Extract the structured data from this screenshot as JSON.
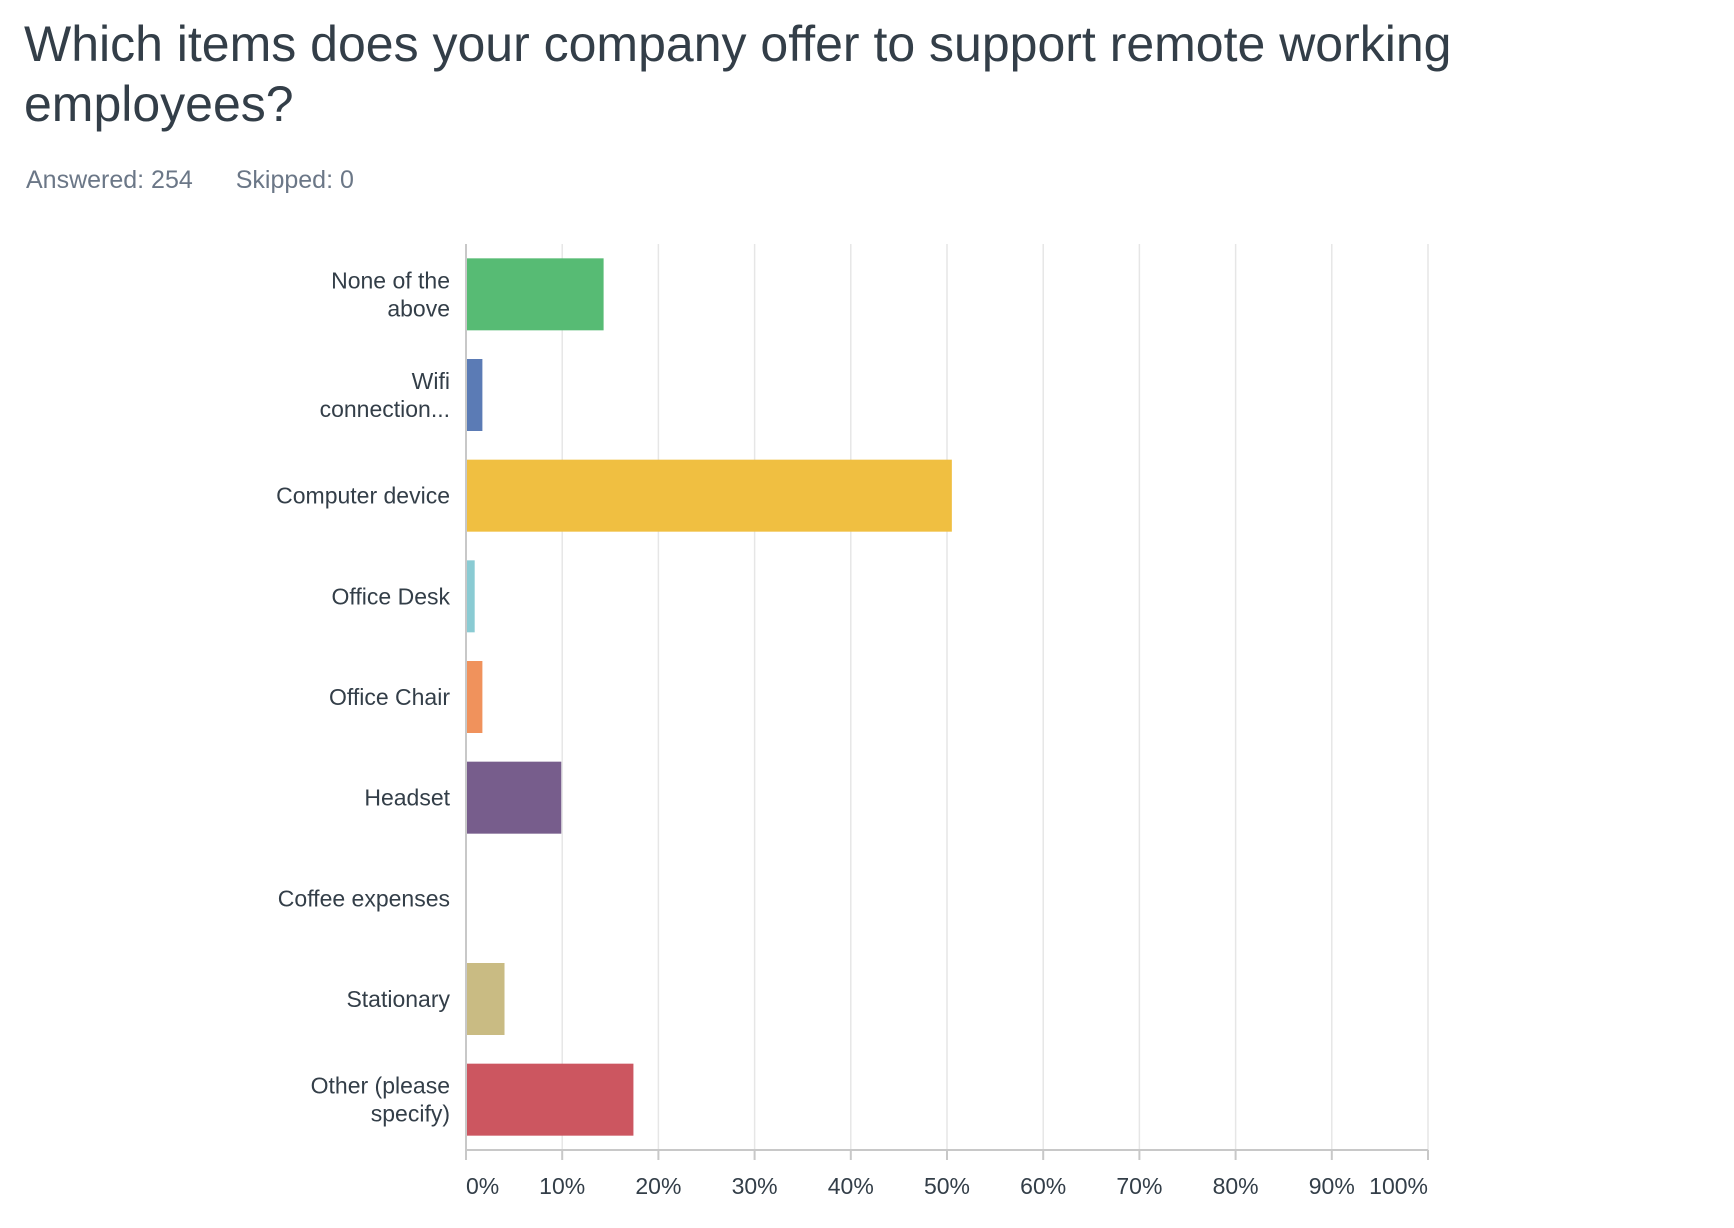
{
  "question": {
    "title": "Which items does your company offer to support remote working employees?",
    "answered": "Answered: 254",
    "skipped": "Skipped: 0"
  },
  "chart_data": {
    "type": "bar",
    "orientation": "horizontal",
    "categories": [
      [
        "None of the",
        "above"
      ],
      [
        "Wifi",
        "connection..."
      ],
      [
        "Computer device"
      ],
      [
        "Office Desk"
      ],
      [
        "Office Chair"
      ],
      [
        "Headset"
      ],
      [
        "Coffee expenses"
      ],
      [
        "Stationary"
      ],
      [
        "Other (please",
        "specify)"
      ]
    ],
    "values": [
      14.2,
      1.6,
      50.4,
      0.8,
      1.6,
      9.8,
      0,
      3.9,
      17.3
    ],
    "colors": [
      "#57bb74",
      "#5b7bb5",
      "#f0bf41",
      "#8acbd3",
      "#f0925c",
      "#775d8c",
      "#d3d3d3",
      "#c9bb83",
      "#cc5660"
    ],
    "xlim": [
      0,
      100
    ],
    "xticks": [
      "0%",
      "10%",
      "20%",
      "30%",
      "40%",
      "50%",
      "60%",
      "70%",
      "80%",
      "90%",
      "100%"
    ],
    "grid": true,
    "xlabel": "",
    "ylabel": ""
  }
}
